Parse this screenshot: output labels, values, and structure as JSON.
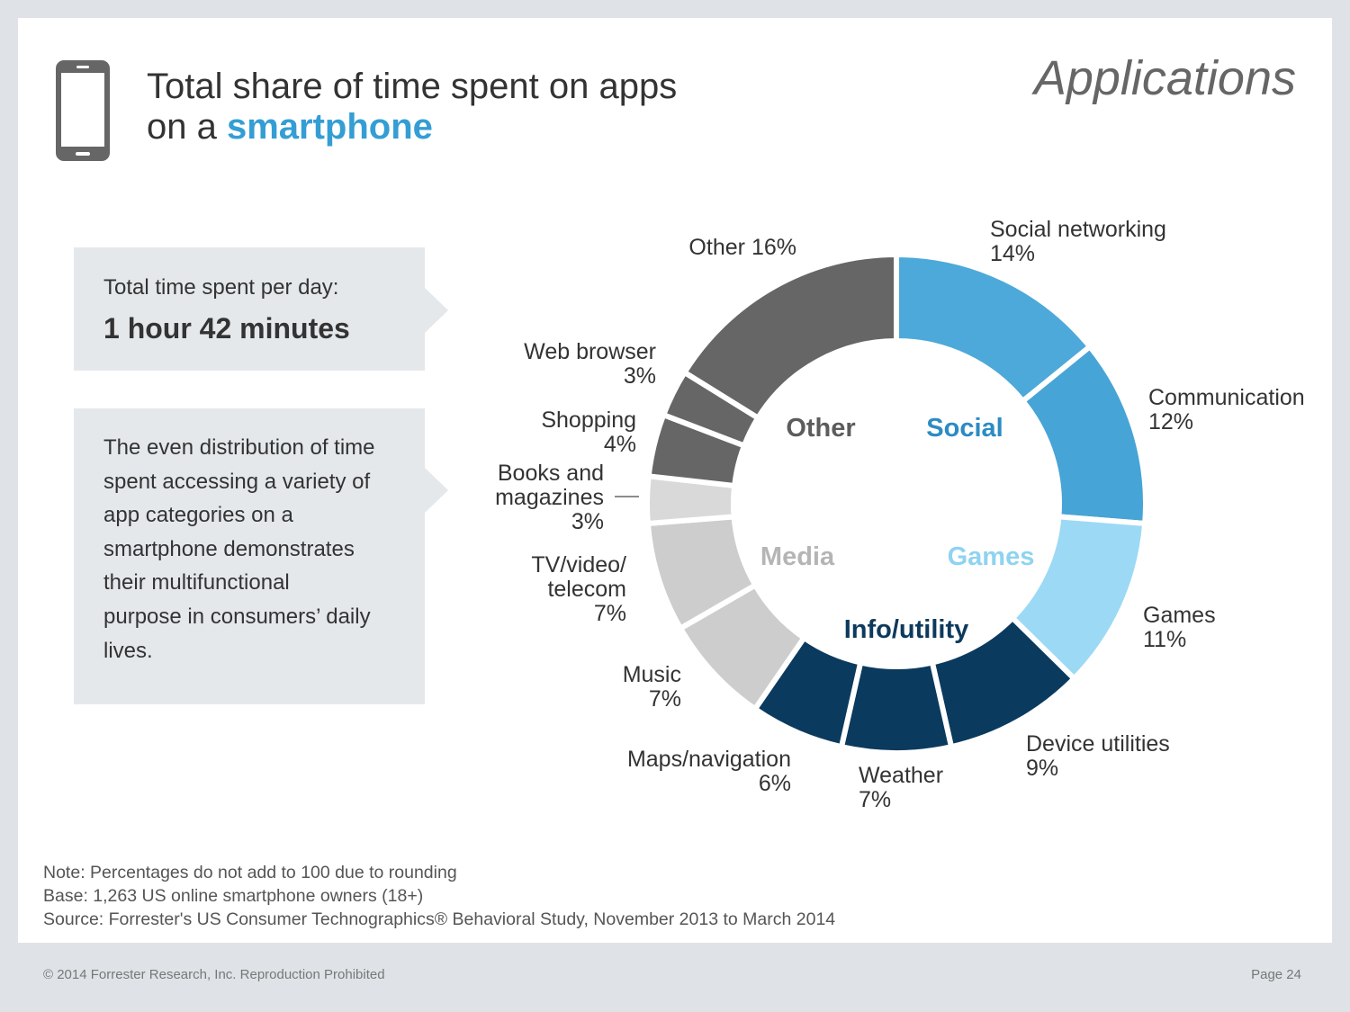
{
  "header": {
    "section": "Applications",
    "icon": "smartphone-icon"
  },
  "callouts": {
    "time_label": "Total time spent per day:",
    "time_value": "1 hour 42 minutes",
    "insight_lines": [
      "The even distribution of time",
      "spent accessing a variety of",
      "app categories on a",
      "smartphone demonstrates",
      "their multifunctional",
      "purpose in consumers’ daily",
      "lives."
    ]
  },
  "chart_data": {
    "type": "pie",
    "style": "donut",
    "title": {
      "line1": "Total share of time spent on apps",
      "line2": "on a ",
      "line2_emphasis": "smartphone"
    },
    "value_suffix": "%",
    "groups": [
      {
        "name": "Social",
        "color": "#2c8bc3"
      },
      {
        "name": "Games",
        "color": "#8fd3f1"
      },
      {
        "name": "Info/utility",
        "color": "#0d3a5c"
      },
      {
        "name": "Media",
        "color": "#b5b5b5"
      },
      {
        "name": "Other",
        "color": "#5c5c5c"
      }
    ],
    "slices": [
      {
        "label": [
          "Social networking"
        ],
        "value": 14,
        "group": 0,
        "color": "#4da9d9"
      },
      {
        "label": [
          "Communication"
        ],
        "value": 12,
        "group": 0,
        "color": "#47a4d6"
      },
      {
        "label": [
          "Games"
        ],
        "value": 11,
        "group": 1,
        "color": "#9cd9f5"
      },
      {
        "label": [
          "Device utilities"
        ],
        "value": 9,
        "group": 2,
        "color": "#0a3a5e"
      },
      {
        "label": [
          "Weather"
        ],
        "value": 7,
        "group": 2,
        "color": "#0a3a5e"
      },
      {
        "label": [
          "Maps/navigation"
        ],
        "value": 6,
        "group": 2,
        "color": "#0a3a5e"
      },
      {
        "label": [
          "Music"
        ],
        "value": 7,
        "group": 3,
        "color": "#cdcdcd"
      },
      {
        "label": [
          "TV/video/",
          "telecom"
        ],
        "value": 7,
        "group": 3,
        "color": "#cdcdcd"
      },
      {
        "label": [
          "Books and",
          "magazines"
        ],
        "value": 3,
        "group": 3,
        "color": "#d9d9d9"
      },
      {
        "label": [
          "Shopping"
        ],
        "value": 4,
        "group": 4,
        "color": "#666666"
      },
      {
        "label": [
          "Web browser"
        ],
        "value": 3,
        "group": 4,
        "color": "#666666"
      },
      {
        "label": [
          "Other"
        ],
        "value": 16,
        "group": 4,
        "color": "#666666"
      }
    ]
  },
  "notes": [
    "Note: Percentages do not add to 100 due to rounding",
    "Base: 1,263 US online smartphone owners (18+)",
    "Source: Forrester's US Consumer Technographics® Behavioral Study, November 2013 to March 2014"
  ],
  "footer": {
    "copyright": "© 2014 Forrester Research, Inc. Reproduction Prohibited",
    "page": "Page 24"
  },
  "colors": {
    "accent": "#349ed4",
    "panel": "#e5e8eb",
    "frame": "#dfe3e7"
  }
}
